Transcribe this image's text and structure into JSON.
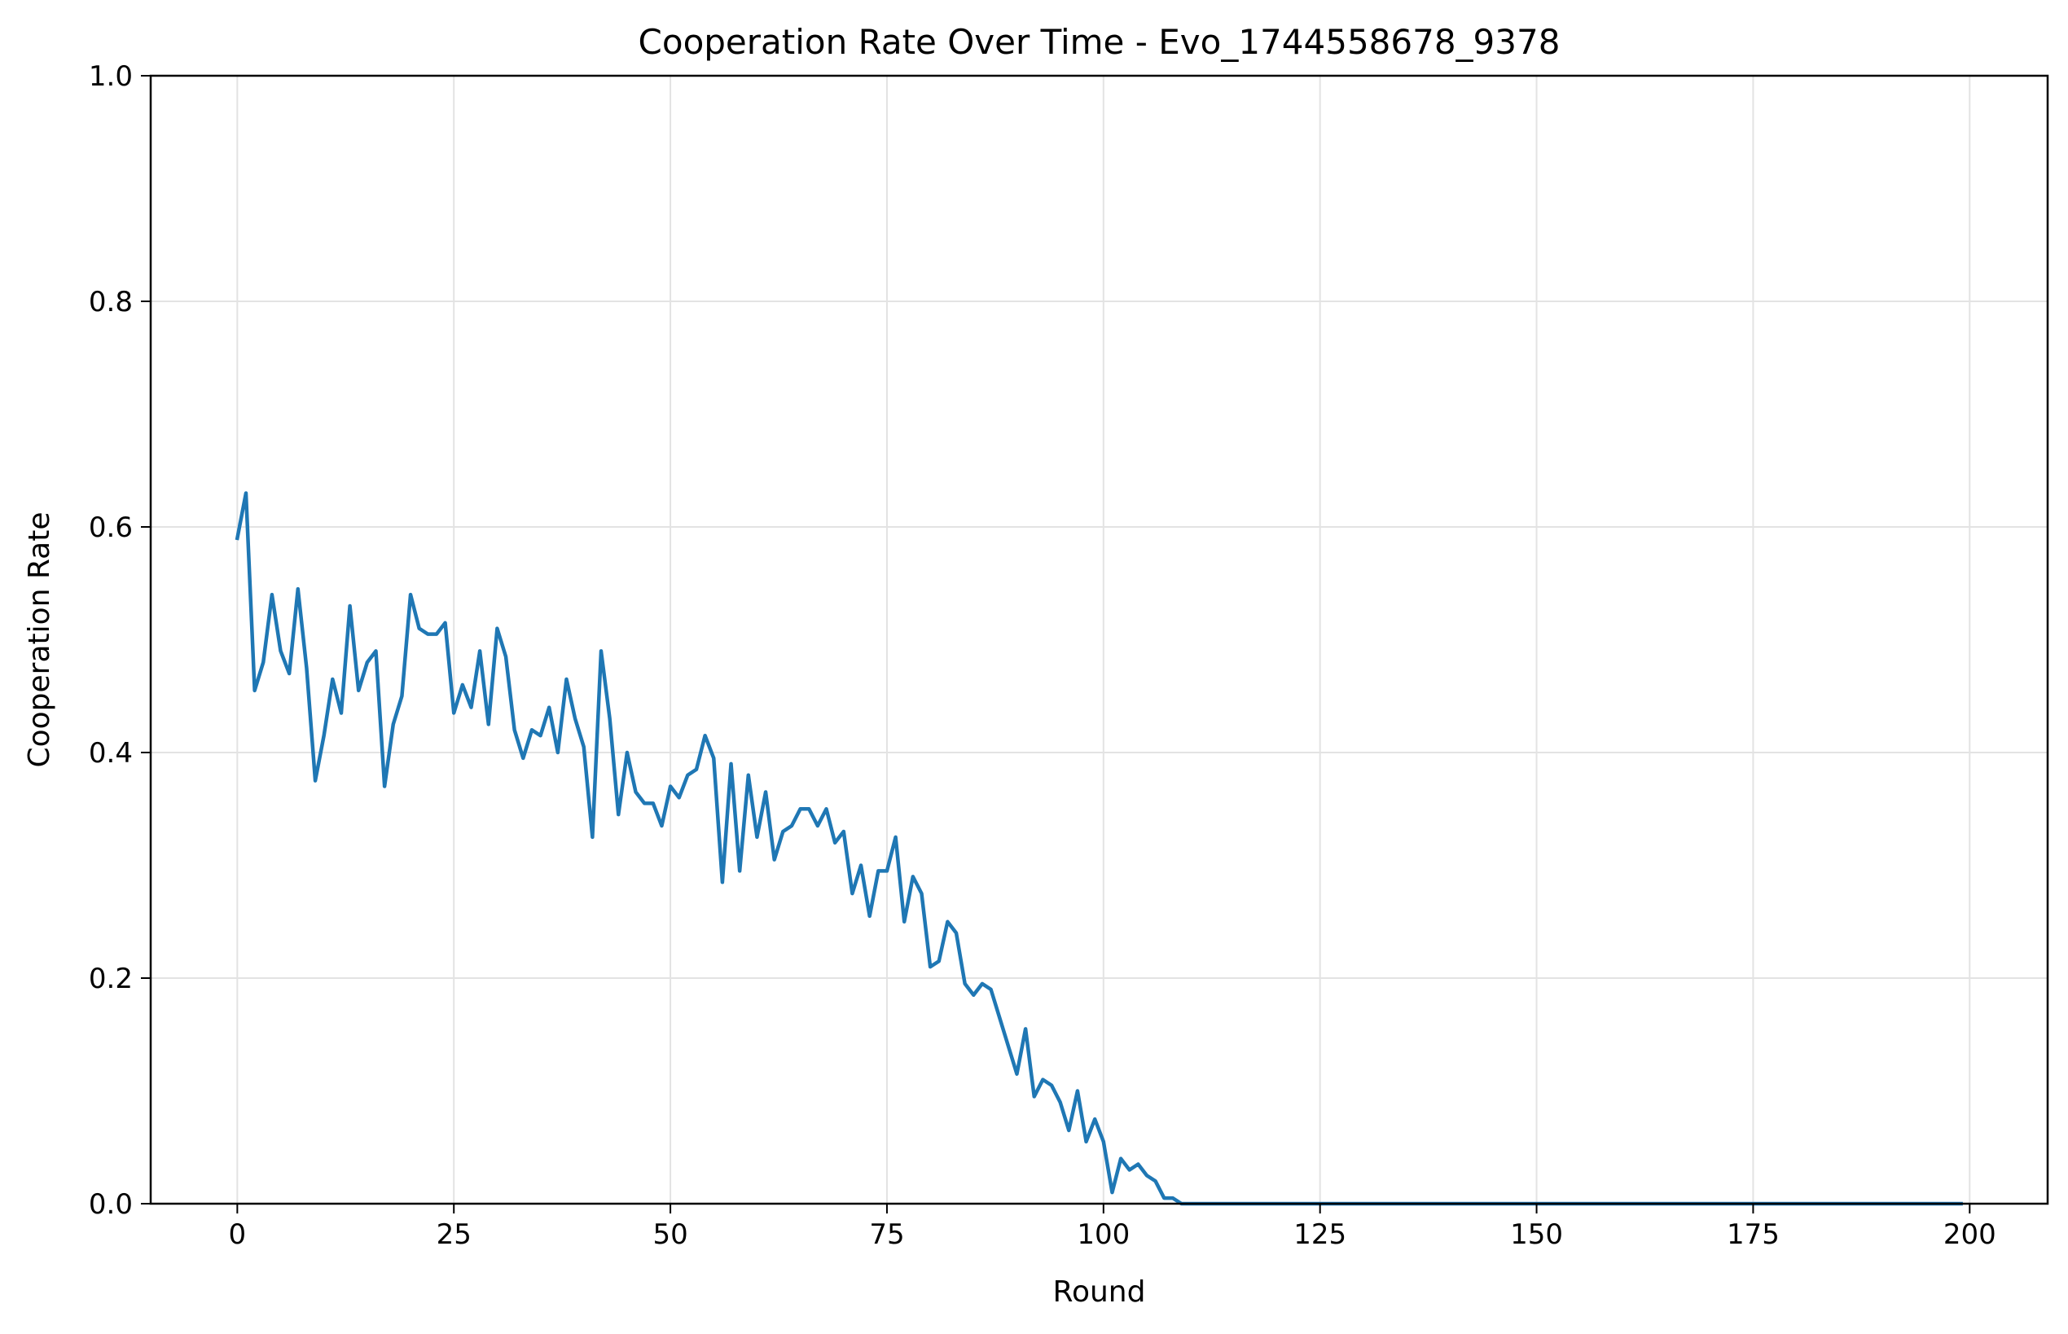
{
  "chart_data": {
    "type": "line",
    "title": "Cooperation Rate Over Time - Evo_1744558678_9378",
    "xlabel": "Round",
    "ylabel": "Cooperation Rate",
    "xlim": [
      -10,
      209
    ],
    "ylim": [
      0,
      1
    ],
    "grid": true,
    "x_ticks": [
      0,
      25,
      50,
      75,
      100,
      125,
      150,
      175,
      200
    ],
    "x_tick_labels": [
      "0",
      "25",
      "50",
      "75",
      "100",
      "125",
      "150",
      "175",
      "200"
    ],
    "y_ticks": [
      0,
      0.2,
      0.4,
      0.6,
      0.8,
      1
    ],
    "y_tick_labels": [
      "0.0",
      "0.2",
      "0.4",
      "0.6",
      "0.8",
      "1.0"
    ],
    "line_color": "#1f77b4",
    "grid_color": "#e3e3e3",
    "series": [
      {
        "name": "Cooperation Rate",
        "x": [
          0,
          1,
          2,
          3,
          4,
          5,
          6,
          7,
          8,
          9,
          10,
          11,
          12,
          13,
          14,
          15,
          16,
          17,
          18,
          19,
          20,
          21,
          22,
          23,
          24,
          25,
          26,
          27,
          28,
          29,
          30,
          31,
          32,
          33,
          34,
          35,
          36,
          37,
          38,
          39,
          40,
          41,
          42,
          43,
          44,
          45,
          46,
          47,
          48,
          49,
          50,
          51,
          52,
          53,
          54,
          55,
          56,
          57,
          58,
          59,
          60,
          61,
          62,
          63,
          64,
          65,
          66,
          67,
          68,
          69,
          70,
          71,
          72,
          73,
          74,
          75,
          76,
          77,
          78,
          79,
          80,
          81,
          82,
          83,
          84,
          85,
          86,
          87,
          88,
          89,
          90,
          91,
          92,
          93,
          94,
          95,
          96,
          97,
          98,
          99,
          100,
          101,
          102,
          103,
          104,
          105,
          106,
          107,
          108,
          109,
          110,
          199
        ],
        "values": [
          0.59,
          0.63,
          0.455,
          0.48,
          0.54,
          0.49,
          0.47,
          0.545,
          0.475,
          0.375,
          0.415,
          0.465,
          0.435,
          0.53,
          0.455,
          0.48,
          0.49,
          0.37,
          0.425,
          0.45,
          0.54,
          0.51,
          0.505,
          0.505,
          0.515,
          0.435,
          0.46,
          0.44,
          0.49,
          0.425,
          0.51,
          0.485,
          0.42,
          0.395,
          0.42,
          0.415,
          0.44,
          0.4,
          0.465,
          0.43,
          0.405,
          0.325,
          0.49,
          0.43,
          0.345,
          0.4,
          0.365,
          0.355,
          0.355,
          0.335,
          0.37,
          0.36,
          0.38,
          0.385,
          0.415,
          0.395,
          0.285,
          0.39,
          0.295,
          0.38,
          0.325,
          0.365,
          0.305,
          0.33,
          0.335,
          0.35,
          0.35,
          0.335,
          0.35,
          0.32,
          0.33,
          0.275,
          0.3,
          0.255,
          0.295,
          0.295,
          0.325,
          0.25,
          0.29,
          0.275,
          0.21,
          0.215,
          0.25,
          0.24,
          0.195,
          0.185,
          0.195,
          0.19,
          0.165,
          0.14,
          0.115,
          0.155,
          0.095,
          0.11,
          0.105,
          0.09,
          0.065,
          0.1,
          0.055,
          0.075,
          0.055,
          0.01,
          0.04,
          0.03,
          0.035,
          0.025,
          0.02,
          0.005,
          0.005,
          0.0,
          0.0,
          0.0
        ]
      }
    ]
  }
}
